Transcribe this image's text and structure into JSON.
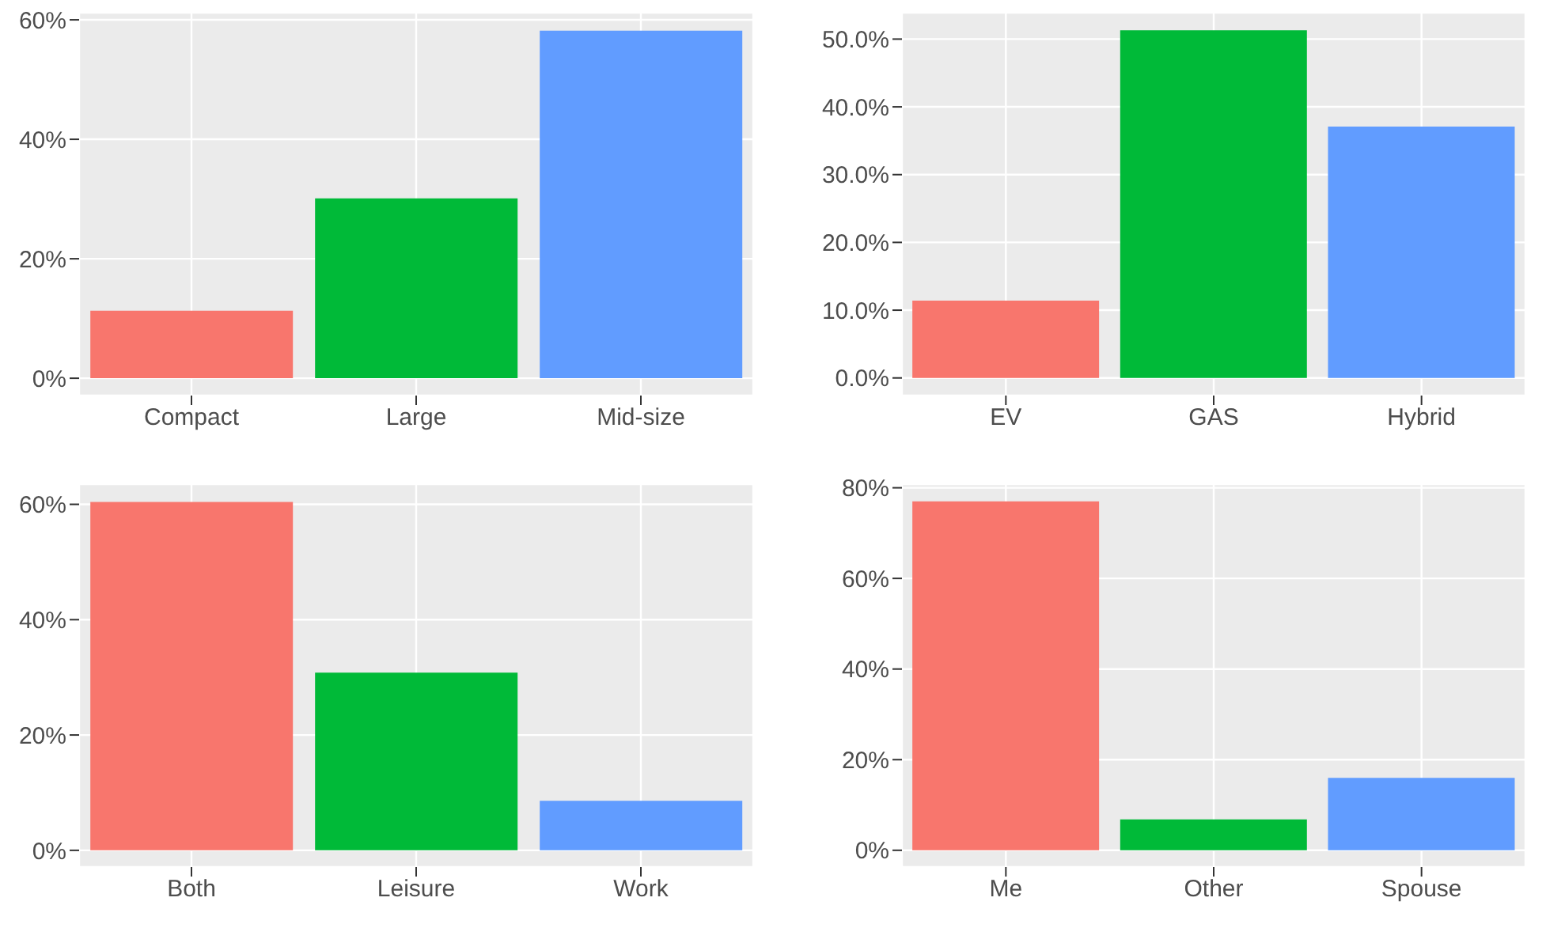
{
  "chart_data": [
    {
      "type": "bar",
      "categories": [
        "Compact",
        "Large",
        "Mid-size"
      ],
      "values": [
        11.3,
        30.1,
        58.2
      ],
      "colors": [
        "#f8766d",
        "#00ba38",
        "#619cff"
      ],
      "ylim": [
        -2.9,
        61.2
      ],
      "yticks": [
        {
          "value": 0,
          "label": "0%"
        },
        {
          "value": 20,
          "label": "20%"
        },
        {
          "value": 40,
          "label": "40%"
        },
        {
          "value": 60,
          "label": "60%"
        }
      ],
      "grid": true,
      "legend": false
    },
    {
      "type": "bar",
      "categories": [
        "EV",
        "GAS",
        "Hybrid"
      ],
      "values": [
        11.4,
        51.3,
        37.1
      ],
      "colors": [
        "#f8766d",
        "#00ba38",
        "#619cff"
      ],
      "ylim": [
        -2.6,
        53.9
      ],
      "yticks": [
        {
          "value": 0,
          "label": "0.0%"
        },
        {
          "value": 10,
          "label": "10.0%"
        },
        {
          "value": 20,
          "label": "20.0%"
        },
        {
          "value": 30,
          "label": "30.0%"
        },
        {
          "value": 40,
          "label": "40.0%"
        },
        {
          "value": 50,
          "label": "50.0%"
        }
      ],
      "grid": true,
      "legend": false
    },
    {
      "type": "bar",
      "categories": [
        "Both",
        "Leisure",
        "Work"
      ],
      "values": [
        60.4,
        30.8,
        8.6
      ],
      "colors": [
        "#f8766d",
        "#00ba38",
        "#619cff"
      ],
      "ylim": [
        -2.9,
        63.5
      ],
      "yticks": [
        {
          "value": 0,
          "label": "0%"
        },
        {
          "value": 20,
          "label": "20%"
        },
        {
          "value": 40,
          "label": "40%"
        },
        {
          "value": 60,
          "label": "60%"
        }
      ],
      "grid": true,
      "legend": false
    },
    {
      "type": "bar",
      "categories": [
        "Me",
        "Other",
        "Spouse"
      ],
      "values": [
        77.0,
        6.8,
        16.0
      ],
      "colors": [
        "#f8766d",
        "#00ba38",
        "#619cff"
      ],
      "ylim": [
        -3.7,
        80.8
      ],
      "yticks": [
        {
          "value": 0,
          "label": "0%"
        },
        {
          "value": 20,
          "label": "20%"
        },
        {
          "value": 40,
          "label": "40%"
        },
        {
          "value": 60,
          "label": "60%"
        },
        {
          "value": 80,
          "label": "80%"
        }
      ],
      "grid": true,
      "legend": false
    }
  ]
}
